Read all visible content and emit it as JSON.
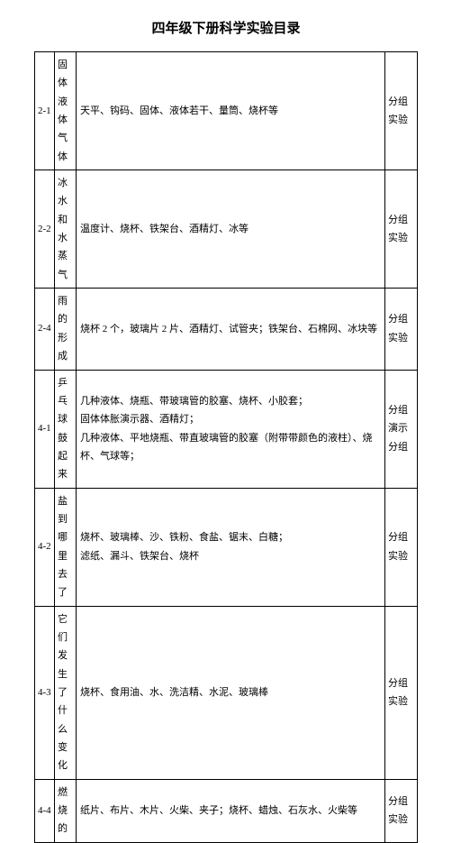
{
  "title": "四年级下册科学实验目录",
  "rows": [
    {
      "id": "2-1",
      "name": "固体液体气体",
      "materials": "天平、钩码、固体、液体若干、量筒、烧杯等",
      "type": "分组实验"
    },
    {
      "id": "2-2",
      "name": "冰水和水蒸气",
      "materials": "温度计、烧杯、铁架台、酒精灯、冰等",
      "type": "分组实验"
    },
    {
      "id": "2-4",
      "name": "雨的形成",
      "materials": "烧杯 2 个，玻璃片 2 片、酒精灯、试管夹；铁架台、石棉网、冰块等",
      "type": "分组实验"
    },
    {
      "id": "4-1",
      "name": "乒乓球鼓起来",
      "materials": "几种液体、烧瓶、带玻璃管的胶塞、烧杯、小胶套；\n固体体胀演示器、酒精灯；\n几种液体、平地烧瓶、带直玻璃管的胶塞（附带带颜色的液柱）、烧杯、气球等；",
      "type": "分组演示\n分组"
    },
    {
      "id": "4-2",
      "name": "盐到哪里去了",
      "materials": "烧杯、玻璃棒、沙、铁粉、食盐、锯末、白糖；\n滤纸、漏斗、铁架台、烧杯",
      "type": "分组实验"
    },
    {
      "id": "4-3",
      "name": "它们发生了什么变化",
      "materials": "烧杯、食用油、水、洗洁精、水泥、玻璃棒",
      "type": "分组实验"
    },
    {
      "id": "4-4",
      "name": "燃烧的",
      "materials": "纸片、布片、木片、火柴、夹子；烧杯、蜡烛、石灰水、火柴等",
      "type": "分组实验"
    }
  ]
}
